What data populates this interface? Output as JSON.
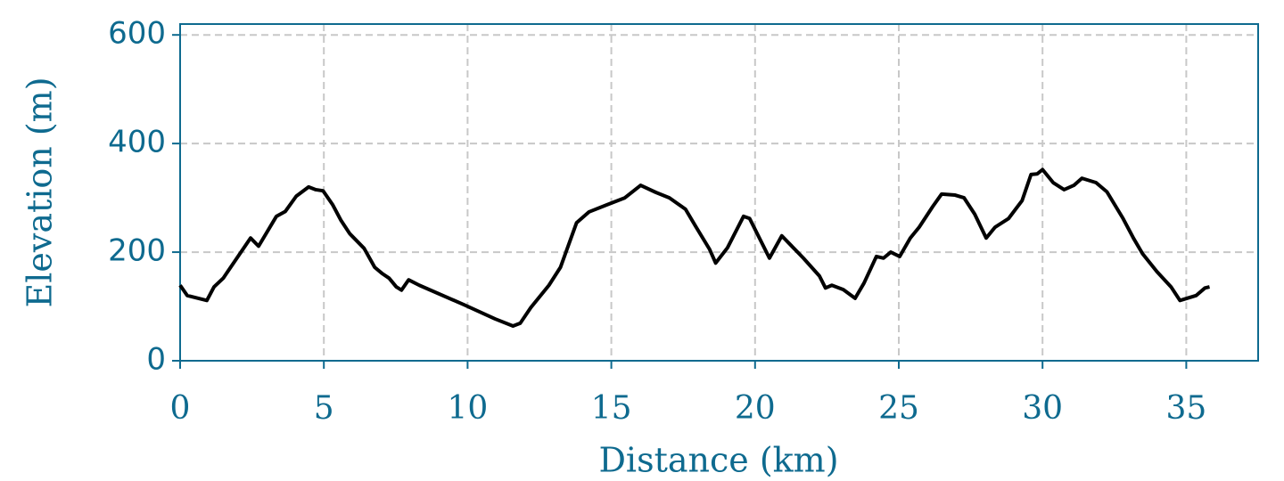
{
  "chart_data": {
    "type": "line",
    "x_label": "Distance (km)",
    "y_label": "Elevation (m)",
    "x": [
      0,
      0.25,
      0.93,
      1.18,
      1.5,
      2.45,
      2.73,
      3.35,
      3.66,
      4.04,
      4.47,
      4.72,
      4.97,
      5.31,
      5.59,
      5.9,
      6.4,
      6.77,
      7.02,
      7.27,
      7.52,
      7.7,
      7.95,
      8.32,
      9.88,
      10.96,
      11.58,
      11.83,
      12.2,
      12.83,
      13.23,
      13.79,
      14.22,
      14.84,
      15.47,
      16.02,
      16.55,
      17.02,
      17.58,
      17.95,
      18.42,
      18.63,
      19.04,
      19.6,
      19.81,
      20.5,
      20.93,
      21.68,
      22.24,
      22.45,
      22.67,
      23.07,
      23.48,
      23.79,
      24.22,
      24.47,
      24.72,
      25.03,
      25.4,
      25.71,
      26.18,
      26.49,
      26.96,
      27.27,
      27.64,
      28.04,
      28.35,
      28.82,
      29.29,
      29.6,
      29.81,
      30.0,
      30.37,
      30.75,
      31.09,
      31.37,
      31.86,
      32.24,
      32.8,
      33.17,
      33.48,
      33.98,
      34.47,
      34.78,
      35.34,
      35.65,
      35.81
    ],
    "values": [
      139,
      120,
      111,
      136,
      152,
      226,
      211,
      266,
      275,
      303,
      320,
      315,
      313,
      287,
      259,
      234,
      207,
      172,
      161,
      152,
      136,
      130,
      149,
      139,
      103,
      77,
      64,
      69,
      98,
      139,
      172,
      254,
      274,
      287,
      300,
      323,
      310,
      300,
      279,
      246,
      205,
      180,
      208,
      266,
      262,
      189,
      230,
      189,
      156,
      134,
      139,
      131,
      115,
      143,
      192,
      189,
      200,
      192,
      226,
      246,
      284,
      307,
      305,
      300,
      270,
      226,
      246,
      262,
      295,
      343,
      344,
      352,
      328,
      315,
      323,
      336,
      328,
      311,
      262,
      225,
      197,
      164,
      136,
      111,
      120,
      134,
      136
    ],
    "color": "#000000",
    "xlim": [
      0,
      37.5
    ],
    "xticks": [
      0,
      5,
      10,
      15,
      20,
      25,
      30,
      35
    ],
    "ylim": [
      0,
      620
    ],
    "yticks": [
      0,
      200,
      400,
      600
    ],
    "grid": true,
    "axis_color": "#0e6a8f"
  }
}
